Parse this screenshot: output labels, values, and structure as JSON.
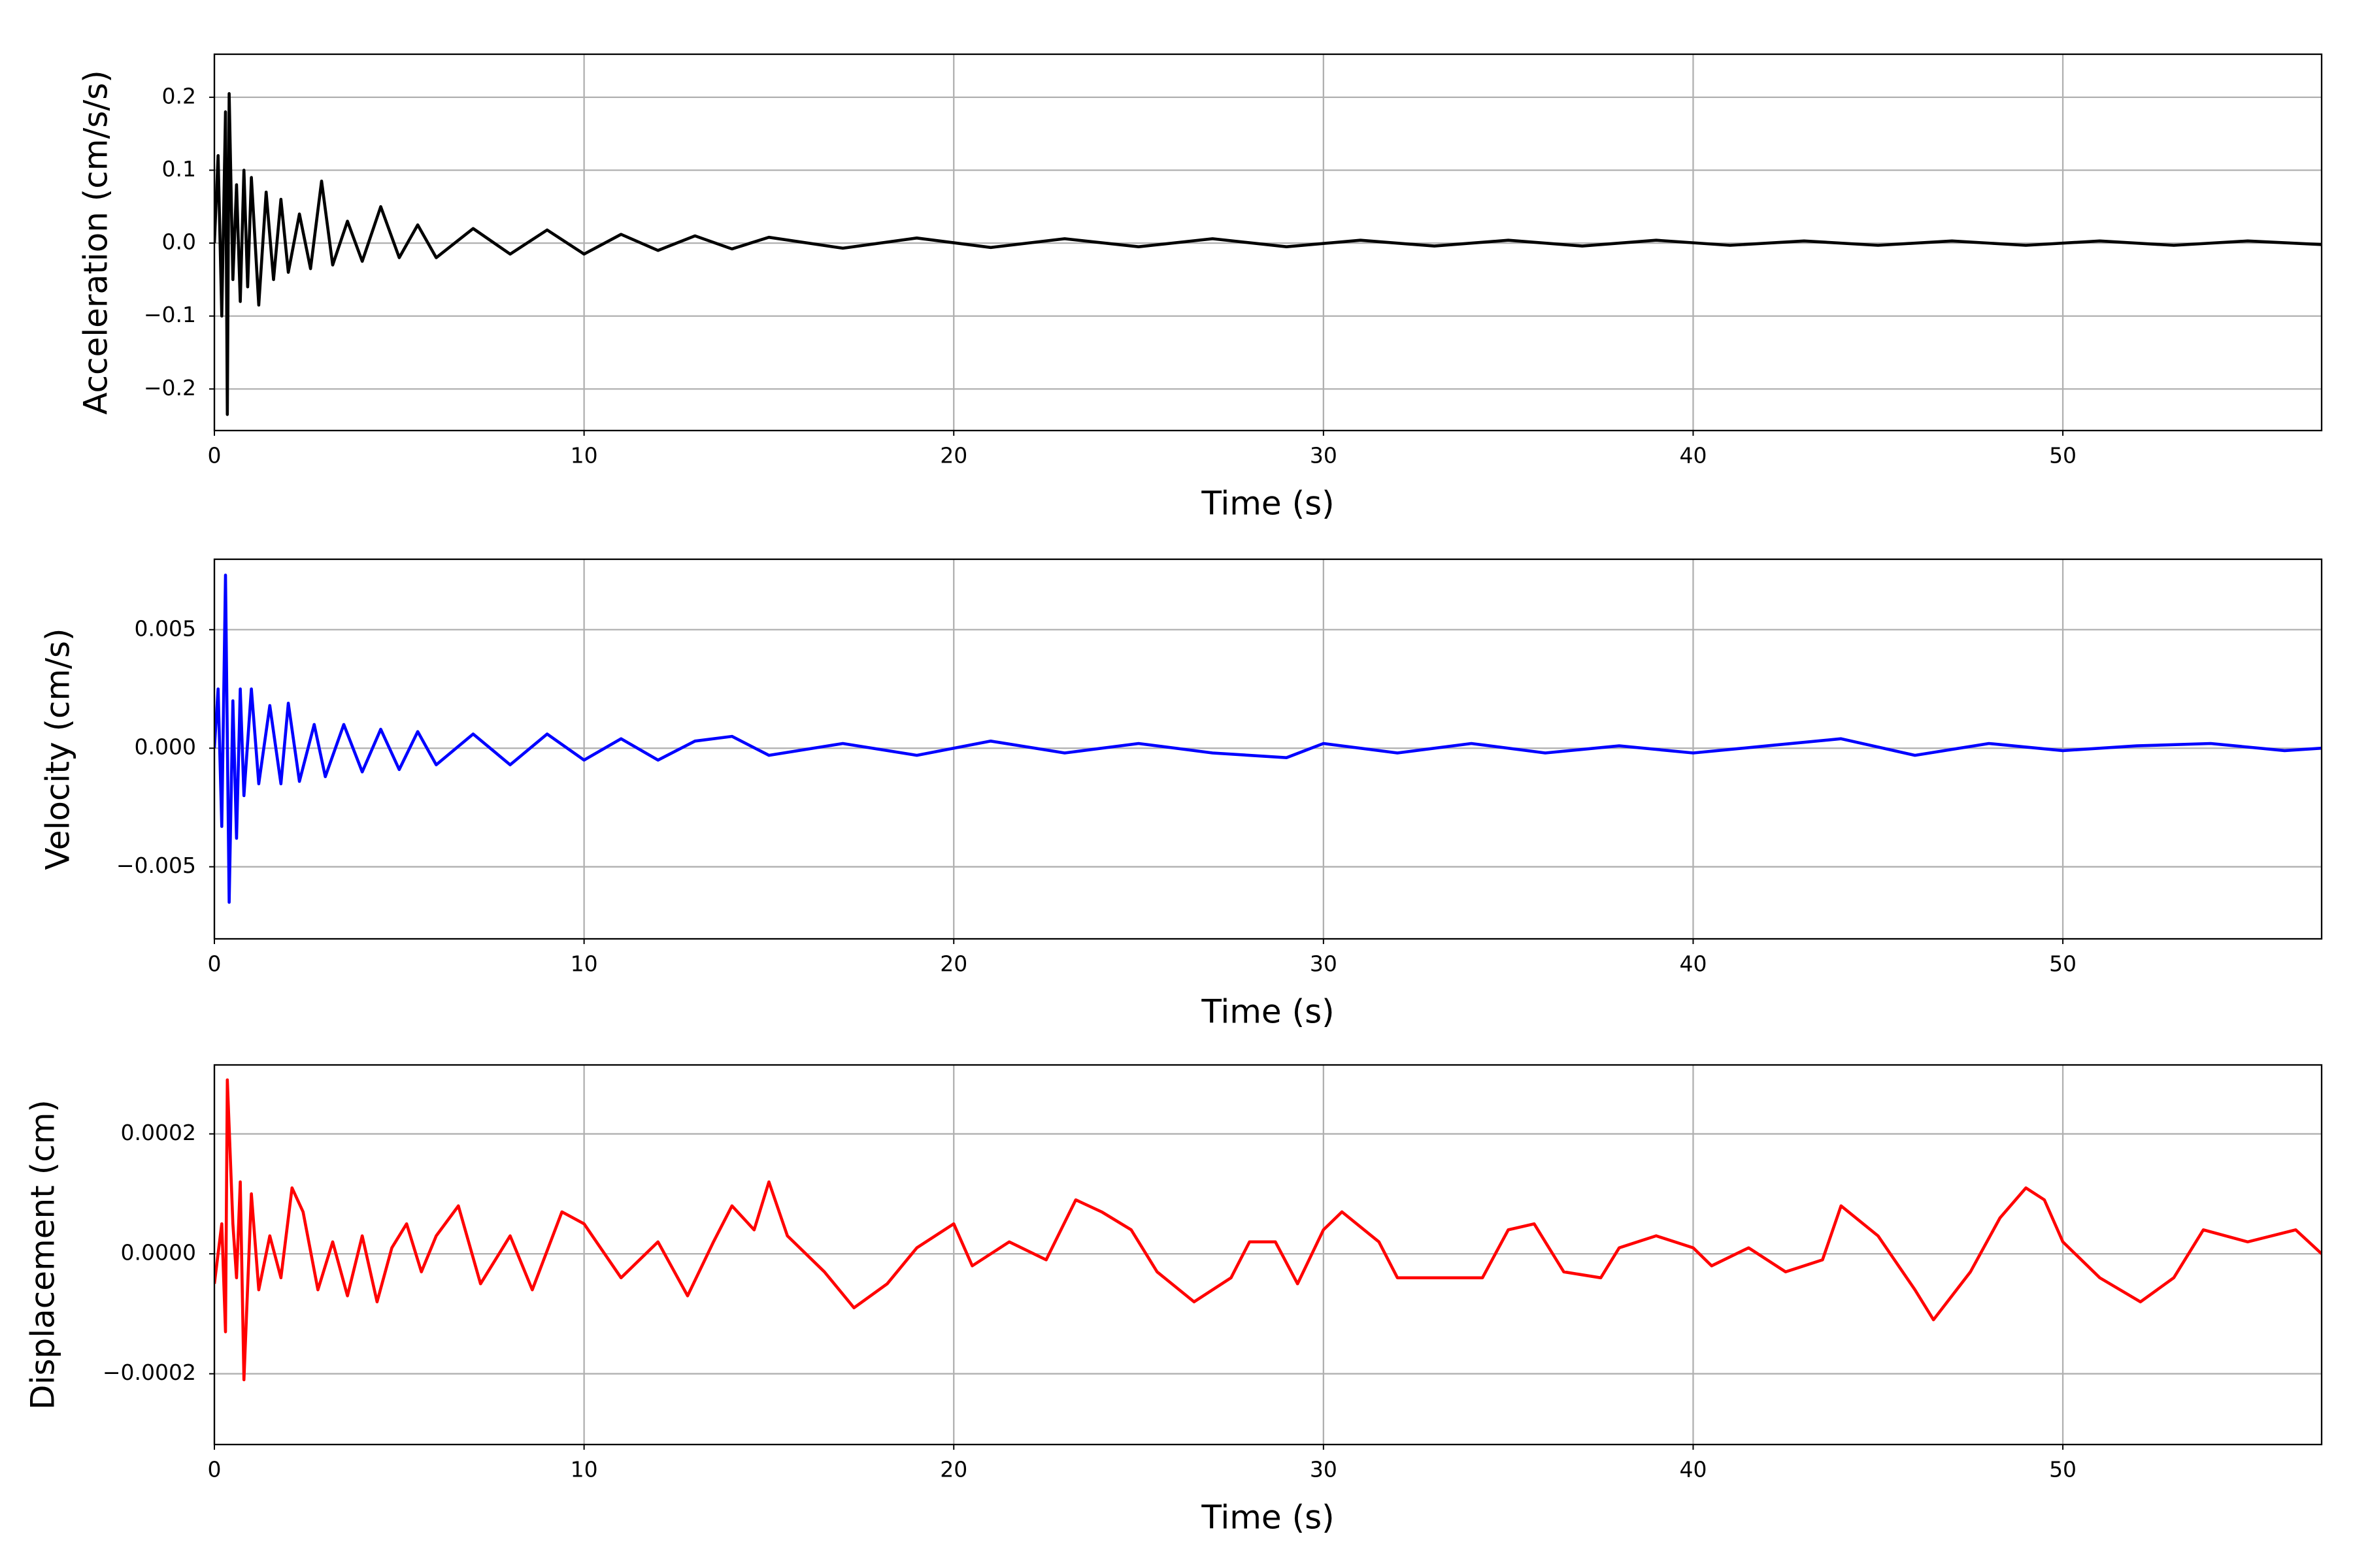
{
  "chart_data": [
    {
      "type": "line",
      "xlabel": "Time (s)",
      "ylabel": "Acceleration (cm/s/s)",
      "color": "#000000",
      "grid": true,
      "xlim": [
        0,
        57
      ],
      "xticks": [
        0,
        10,
        20,
        30,
        40,
        50
      ],
      "ylim": [
        -0.257,
        0.259
      ],
      "yticks": [
        {
          "value": -0.2,
          "label": "−0.2"
        },
        {
          "value": -0.1,
          "label": "−0.1"
        },
        {
          "value": 0,
          "label": "0.0"
        },
        0.1,
        0.2
      ],
      "x": [
        0,
        0.1,
        0.2,
        0.3,
        0.35,
        0.4,
        0.5,
        0.6,
        0.7,
        0.8,
        0.9,
        1.0,
        1.2,
        1.4,
        1.6,
        1.8,
        2.0,
        2.3,
        2.6,
        2.9,
        3.2,
        3.6,
        4.0,
        4.5,
        5.0,
        5.5,
        6,
        7,
        8,
        9,
        10,
        11,
        12,
        13,
        14,
        15,
        17,
        19,
        21,
        23,
        25,
        27,
        29,
        31,
        33,
        35,
        37,
        39,
        41,
        43,
        45,
        47,
        49,
        51,
        53,
        55,
        57
      ],
      "values": [
        0,
        0.12,
        -0.1,
        0.18,
        -0.235,
        0.205,
        -0.05,
        0.08,
        -0.08,
        0.1,
        -0.06,
        0.09,
        -0.085,
        0.07,
        -0.05,
        0.06,
        -0.04,
        0.04,
        -0.035,
        0.085,
        -0.03,
        0.03,
        -0.025,
        0.05,
        -0.02,
        0.025,
        -0.02,
        0.02,
        -0.015,
        0.018,
        -0.015,
        0.012,
        -0.01,
        0.01,
        -0.008,
        0.008,
        -0.007,
        0.007,
        -0.006,
        0.006,
        -0.005,
        0.006,
        -0.005,
        0.004,
        -0.004,
        0.004,
        -0.004,
        0.004,
        -0.003,
        0.003,
        -0.003,
        0.003,
        -0.003,
        0.003,
        -0.003,
        0.003,
        -0.002
      ]
    },
    {
      "type": "line",
      "xlabel": "Time (s)",
      "ylabel": "Velocity (cm/s)",
      "color": "#0000ff",
      "grid": true,
      "xlim": [
        0,
        57
      ],
      "xticks": [
        0,
        10,
        20,
        30,
        40,
        50
      ],
      "ylim": [
        -0.00804,
        0.00797
      ],
      "yticks": [
        {
          "value": -0.005,
          "label": "−0.005"
        },
        {
          "value": 0,
          "label": "0.000"
        },
        0.005
      ],
      "x": [
        0,
        0.1,
        0.2,
        0.3,
        0.4,
        0.5,
        0.6,
        0.7,
        0.8,
        1.0,
        1.2,
        1.5,
        1.8,
        2.0,
        2.3,
        2.7,
        3.0,
        3.5,
        4.0,
        4.5,
        5.0,
        5.5,
        6.0,
        7,
        8,
        9,
        10,
        11,
        12,
        13,
        14,
        15,
        17,
        19,
        21,
        23,
        25,
        27,
        29,
        30,
        32,
        34,
        36,
        38,
        40,
        42,
        44,
        46,
        48,
        50,
        52,
        54,
        56,
        57
      ],
      "values": [
        0,
        0.0025,
        -0.0033,
        0.0073,
        -0.0065,
        0.002,
        -0.0038,
        0.0025,
        -0.002,
        0.0025,
        -0.0015,
        0.0018,
        -0.0015,
        0.0019,
        -0.0014,
        0.001,
        -0.0012,
        0.001,
        -0.001,
        0.0008,
        -0.0009,
        0.0007,
        -0.0007,
        0.0006,
        -0.0007,
        0.0006,
        -0.0005,
        0.0004,
        -0.0005,
        0.0003,
        0.0005,
        -0.0003,
        0.0002,
        -0.0003,
        0.0003,
        -0.0002,
        0.0002,
        -0.0002,
        -0.0004,
        0.0002,
        -0.0002,
        0.0002,
        -0.0002,
        0.0001,
        -0.0002,
        0.0001,
        0.0004,
        -0.0003,
        0.0002,
        -0.0001,
        0.0001,
        0.0002,
        -0.0001,
        0
      ]
    },
    {
      "type": "line",
      "xlabel": "Time (s)",
      "ylabel": "Displacement (cm)",
      "color": "#ff0000",
      "grid": true,
      "xlim": [
        0,
        57
      ],
      "xticks": [
        0,
        10,
        20,
        30,
        40,
        50
      ],
      "ylim": [
        -0.000318,
        0.000315
      ],
      "yticks": [
        {
          "value": -0.0002,
          "label": "−0.0002"
        },
        {
          "value": 0,
          "label": "0.0000"
        },
        0.0002
      ],
      "x": [
        0,
        0.2,
        0.3,
        0.35,
        0.5,
        0.6,
        0.7,
        0.8,
        1.0,
        1.2,
        1.5,
        1.8,
        2.1,
        2.4,
        2.8,
        3.2,
        3.6,
        4.0,
        4.4,
        4.8,
        5.2,
        5.6,
        6.0,
        6.6,
        7.2,
        8,
        8.6,
        9.4,
        10,
        11,
        12,
        12.8,
        13.5,
        14,
        14.6,
        15,
        15.5,
        16.5,
        17.3,
        18.2,
        19,
        20,
        20.5,
        21.5,
        22.5,
        23.3,
        24,
        24.8,
        25.5,
        26.5,
        27.5,
        28,
        28.7,
        29.3,
        30,
        30.5,
        31.5,
        32,
        33.3,
        34.3,
        35,
        35.7,
        36.5,
        37.5,
        38,
        39,
        40,
        40.5,
        41.5,
        42.5,
        43.5,
        44,
        45,
        46,
        46.5,
        47.5,
        48.3,
        49,
        49.5,
        50,
        51,
        52.1,
        53,
        53.8,
        55,
        56.3,
        57
      ],
      "values": [
        -5e-05,
        5e-05,
        -0.00013,
        0.00029,
        5e-05,
        -4e-05,
        0.00012,
        -0.00021,
        0.0001,
        -6e-05,
        3e-05,
        -4e-05,
        0.00011,
        7e-05,
        -6e-05,
        2e-05,
        -7e-05,
        3e-05,
        -8e-05,
        1e-05,
        5e-05,
        -3e-05,
        3e-05,
        8e-05,
        -5e-05,
        3e-05,
        -6e-05,
        7e-05,
        5e-05,
        -4e-05,
        2e-05,
        -7e-05,
        2e-05,
        8e-05,
        4e-05,
        0.00012,
        3e-05,
        -3e-05,
        -9e-05,
        -5e-05,
        1e-05,
        5e-05,
        -2e-05,
        2e-05,
        -1e-05,
        9e-05,
        7e-05,
        4e-05,
        -3e-05,
        -8e-05,
        -4e-05,
        2e-05,
        2e-05,
        -5e-05,
        4e-05,
        7e-05,
        2e-05,
        -4e-05,
        -4e-05,
        -4e-05,
        4e-05,
        5e-05,
        -3e-05,
        -4e-05,
        1e-05,
        3e-05,
        1e-05,
        -2e-05,
        1e-05,
        -3e-05,
        -1e-05,
        8e-05,
        3e-05,
        -6e-05,
        -0.00011,
        -3e-05,
        6e-05,
        0.00011,
        9e-05,
        2e-05,
        -4e-05,
        -8e-05,
        -4e-05,
        4e-05,
        2e-05,
        4e-05,
        0
      ]
    }
  ]
}
